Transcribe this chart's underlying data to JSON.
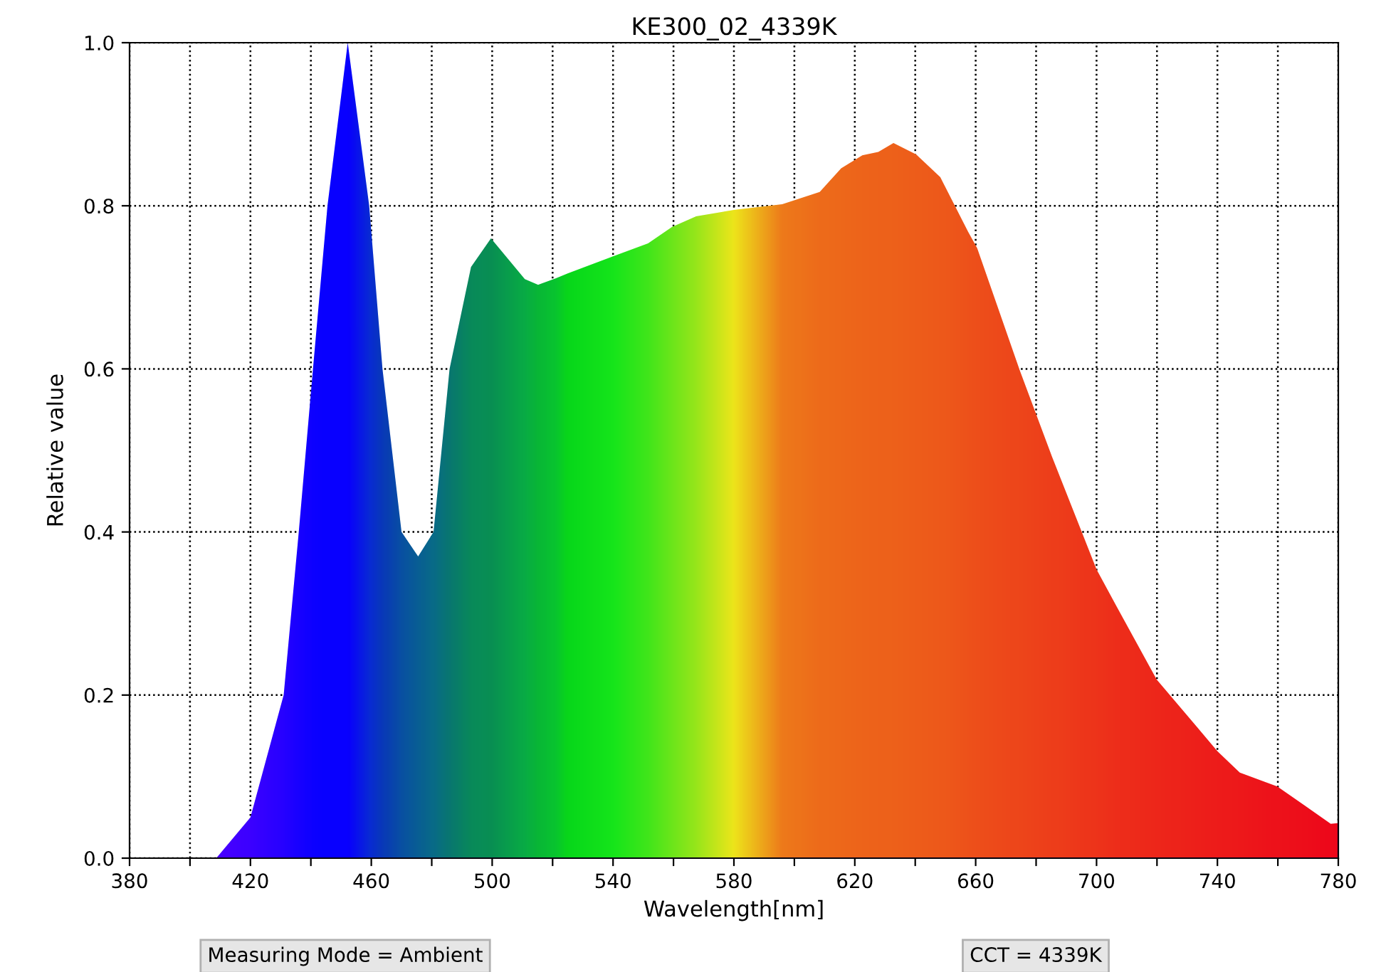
{
  "chart_data": {
    "type": "area",
    "title": "KE300_02_4339K",
    "xlabel": "Wavelength[nm]",
    "ylabel": "Relative value",
    "x": [
      380,
      408.7,
      420,
      431,
      436,
      440.7,
      445.5,
      452.2,
      459.3,
      463.7,
      470,
      475.5,
      480.6,
      485.9,
      493,
      499.6,
      510.8,
      515.2,
      521,
      525,
      540,
      551.6,
      559.5,
      567.5,
      580,
      596,
      608.4,
      615.5,
      622.5,
      627.8,
      632.8,
      640.3,
      648.3,
      657.5,
      660.5,
      674.7,
      685.3,
      700,
      706.6,
      719.9,
      733.2,
      740,
      747.4,
      759.8,
      768.7,
      777.5,
      780
    ],
    "series": [
      {
        "values": [
          0,
          0,
          0.05,
          0.2,
          0.4,
          0.6,
          0.8,
          1.0,
          0.8,
          0.6,
          0.4,
          0.37,
          0.4,
          0.6,
          0.725,
          0.76,
          0.71,
          0.703,
          0.711,
          0.717,
          0.738,
          0.754,
          0.774,
          0.787,
          0.795,
          0.802,
          0.817,
          0.846,
          0.862,
          0.866,
          0.877,
          0.863,
          0.835,
          0.768,
          0.748,
          0.597,
          0.492,
          0.354,
          0.309,
          0.219,
          0.161,
          0.131,
          0.105,
          0.088,
          0.065,
          0.042,
          0.043
        ],
        "colors": [
          "#5000ff",
          "#4a00ff",
          "#3a00ff",
          "#2200ff",
          "#1200ff",
          "#0600ff",
          "#0000ff",
          "#0000ff",
          "#0030d0",
          "#0040b0",
          "#005a98",
          "#006a88",
          "#00787a",
          "#008560",
          "#009a48",
          "#00a040",
          "#00c030",
          "#00cc20",
          "#00dc18",
          "#00f000",
          "#10ff00",
          "#40ff00",
          "#70ff00",
          "#a0ff00",
          "#ffff00",
          "#ff8800",
          "#ff7800",
          "#ff7400",
          "#ff7000",
          "#ff6e00",
          "#ff6c00",
          "#ff6800",
          "#ff6400",
          "#ff5c00",
          "#ff5800",
          "#ff4e00",
          "#ff4600",
          "#ff3a00",
          "#ff3400",
          "#ff2c00",
          "#ff2400",
          "#ff2000",
          "#ff1c00",
          "#ff1400",
          "#ff1000",
          "#ff0a00",
          "#ff0800"
        ]
      }
    ],
    "xlim": [
      380,
      780
    ],
    "ylim": [
      0,
      1.0
    ],
    "xticks": [
      380,
      {
        "value": 400,
        "label": null
      },
      420,
      {
        "value": 440,
        "label": null
      },
      460,
      {
        "value": 480,
        "label": null
      },
      500,
      {
        "value": 520,
        "label": null
      },
      540,
      {
        "value": 560,
        "label": null
      },
      580,
      {
        "value": 600,
        "label": null
      },
      620,
      {
        "value": 640,
        "label": null
      },
      660,
      {
        "value": 680,
        "label": null
      },
      700,
      {
        "value": 720,
        "label": null
      },
      740,
      {
        "value": 760,
        "label": null
      },
      780
    ],
    "yticks": [
      {
        "value": 0,
        "label": "0.0"
      },
      0.2,
      0.4,
      0.6,
      0.8,
      {
        "value": 1.0,
        "label": "1.0"
      }
    ],
    "grid": true,
    "annotations": [
      "Measuring Mode = Ambient",
      "CCT = 4339K"
    ]
  }
}
